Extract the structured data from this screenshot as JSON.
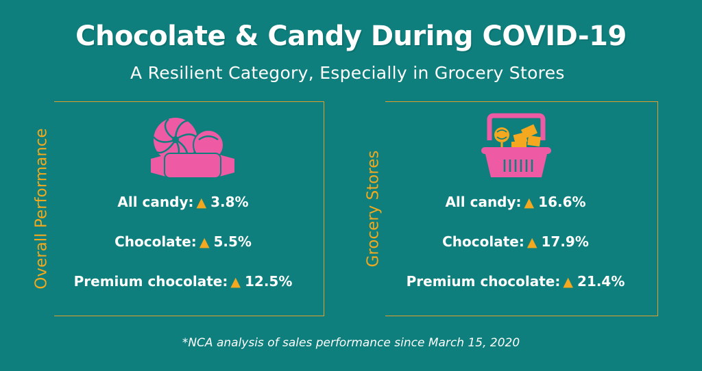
{
  "header": {
    "title": "Chocolate & Candy During COVID-19",
    "subtitle": "A Resilient Category, Especially in Grocery Stores"
  },
  "panels": [
    {
      "label": "Overall Performance",
      "icon": "candy-icon",
      "stats": [
        {
          "label": "All candy:",
          "arrow": "▲",
          "value": "3.8%"
        },
        {
          "label": "Chocolate:",
          "arrow": "▲",
          "value": "5.5%"
        },
        {
          "label": "Premium chocolate:",
          "arrow": "▲",
          "value": "12.5%"
        }
      ]
    },
    {
      "label": "Grocery Stores",
      "icon": "shopping-basket-icon",
      "stats": [
        {
          "label": "All candy:",
          "arrow": "▲",
          "value": "16.6%"
        },
        {
          "label": "Chocolate:",
          "arrow": "▲",
          "value": "17.9%"
        },
        {
          "label": "Premium chocolate:",
          "arrow": "▲",
          "value": "21.4%"
        }
      ]
    }
  ],
  "footnote": "*NCA analysis of sales performance since March 15, 2020",
  "colors": {
    "background": "#0e7f7d",
    "accent": "#f3a81f",
    "border": "#e0a030",
    "icon_pink": "#ef5aa4",
    "text": "#ffffff"
  }
}
